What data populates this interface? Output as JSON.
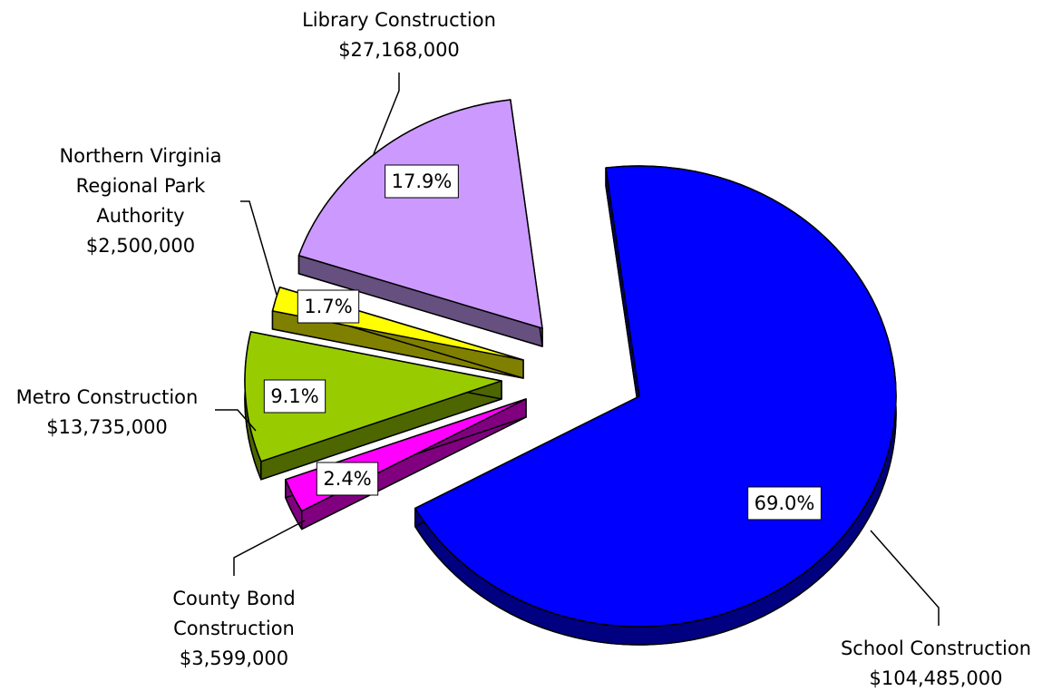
{
  "chart_data": {
    "type": "pie",
    "categories": [
      "School Construction",
      "County Bond Construction",
      "Metro Construction",
      "Northern Virginia Regional Park Authority",
      "Library Construction"
    ],
    "values": [
      104485000,
      3599000,
      13735000,
      2500000,
      27168000
    ],
    "value_labels": [
      "$104,485,000",
      "$3,599,000",
      "$13,735,000",
      "$2,500,000",
      "$27,168,000"
    ],
    "percentages": [
      69.0,
      2.4,
      9.1,
      1.7,
      17.9
    ],
    "percentage_labels": [
      "69.0%",
      "2.4%",
      "9.1%",
      "1.7%",
      "17.9%"
    ],
    "colors": [
      "#0000ff",
      "#ff00ff",
      "#99cc00",
      "#ffff00",
      "#cc99ff"
    ],
    "side_colors": [
      "#000080",
      "#800080",
      "#4d6600",
      "#808000",
      "#66507f"
    ]
  }
}
